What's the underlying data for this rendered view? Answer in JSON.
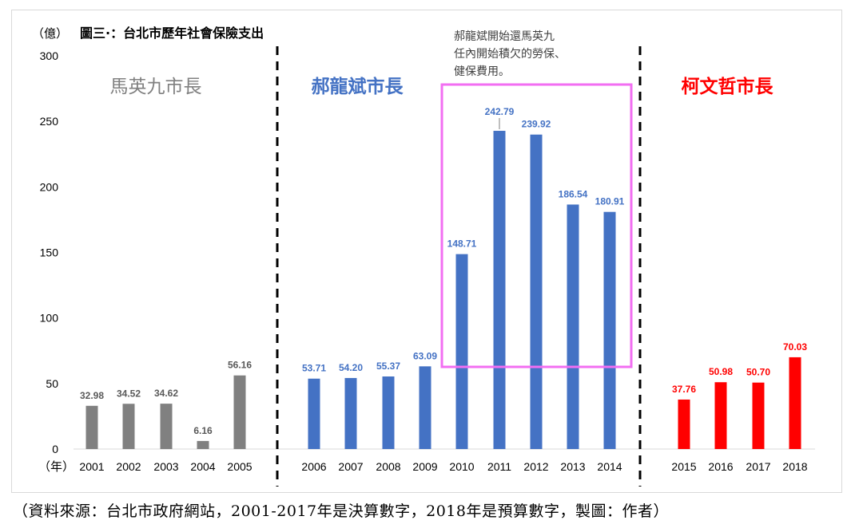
{
  "unit_label": "（億）",
  "year_label": "（年）",
  "source_note": "（資料來源：台北市政府網站，2001-2017年是決算數字，2018年是預算數字，製圖：作者）",
  "chart_data": {
    "type": "bar",
    "title": "圖三·：台北市歷年社會保險支出",
    "xlabel": "（年）",
    "ylabel": "（億）",
    "ylim": [
      0,
      300
    ],
    "yticks": [
      0,
      50,
      100,
      150,
      200,
      250,
      300
    ],
    "grid": false,
    "categories": [
      "2001",
      "2002",
      "2003",
      "2004",
      "2005",
      "2006",
      "2007",
      "2008",
      "2009",
      "2010",
      "2011",
      "2012",
      "2013",
      "2014",
      "2015",
      "2016",
      "2017",
      "2018"
    ],
    "groups": [
      {
        "name": "馬英九市長",
        "color": "#808080",
        "years": [
          "2001",
          "2002",
          "2003",
          "2004",
          "2005"
        ],
        "values": [
          32.98,
          34.52,
          34.62,
          6.16,
          56.16
        ]
      },
      {
        "name": "郝龍斌市長",
        "color": "#4472c4",
        "years": [
          "2006",
          "2007",
          "2008",
          "2009",
          "2010",
          "2011",
          "2012",
          "2013",
          "2014"
        ],
        "values": [
          53.71,
          54.2,
          55.37,
          63.09,
          148.71,
          242.79,
          239.92,
          186.54,
          180.91
        ]
      },
      {
        "name": "柯文哲市長",
        "color": "#ff0000",
        "years": [
          "2015",
          "2016",
          "2017",
          "2018"
        ],
        "values": [
          37.76,
          50.98,
          50.7,
          70.03
        ]
      }
    ],
    "annotation": {
      "lines": [
        "郝龍斌開始還馬英九",
        "任內開始積欠的勞保、",
        "健保費用。"
      ],
      "highlight_years": [
        "2010",
        "2011",
        "2012",
        "2013",
        "2014"
      ],
      "box_color": "#f26ef2"
    }
  }
}
